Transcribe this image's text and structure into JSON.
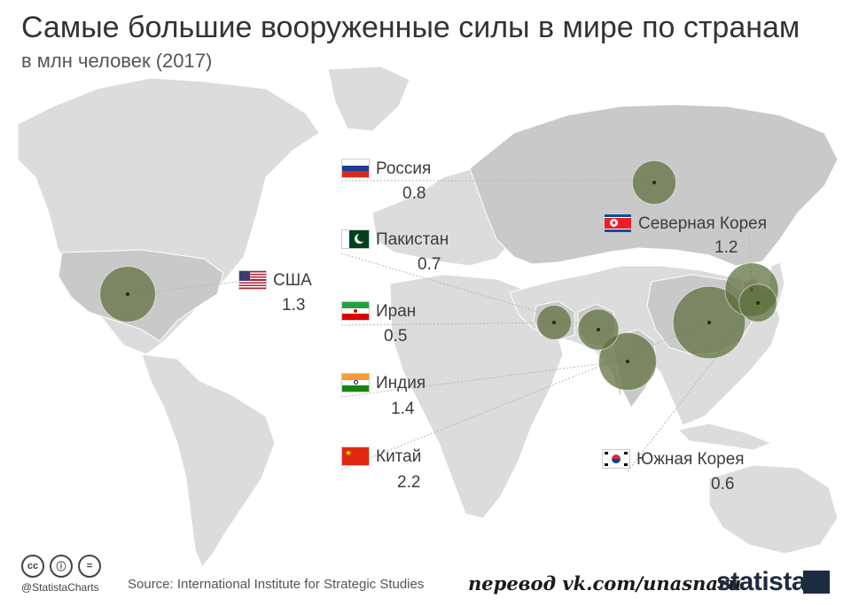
{
  "header": {
    "title": "Самые большие вооруженные силы в мире по странам",
    "subtitle": "в млн человек (2017)"
  },
  "countries": [
    {
      "name": "Россия",
      "value": 0.8,
      "value_text": "0.8"
    },
    {
      "name": "Пакистан",
      "value": 0.7,
      "value_text": "0.7"
    },
    {
      "name": "США",
      "value": 1.3,
      "value_text": "1.3"
    },
    {
      "name": "Иран",
      "value": 0.5,
      "value_text": "0.5"
    },
    {
      "name": "Индия",
      "value": 1.4,
      "value_text": "1.4"
    },
    {
      "name": "Китай",
      "value": 2.2,
      "value_text": "2.2"
    },
    {
      "name": "Северная Корея",
      "value": 1.2,
      "value_text": "1.2"
    },
    {
      "name": "Южная Корея",
      "value": 0.6,
      "value_text": "0.6"
    }
  ],
  "footer": {
    "handle": "@StatistaCharts",
    "source": "Source: International Institute for Strategic Studies",
    "translation": "перевод vk.com/unasnaru",
    "brand": "statista"
  },
  "colors": {
    "land": "#dcdcdc",
    "bubble_fill": "#5c6e3a",
    "leader": "#b5b5b5"
  }
}
